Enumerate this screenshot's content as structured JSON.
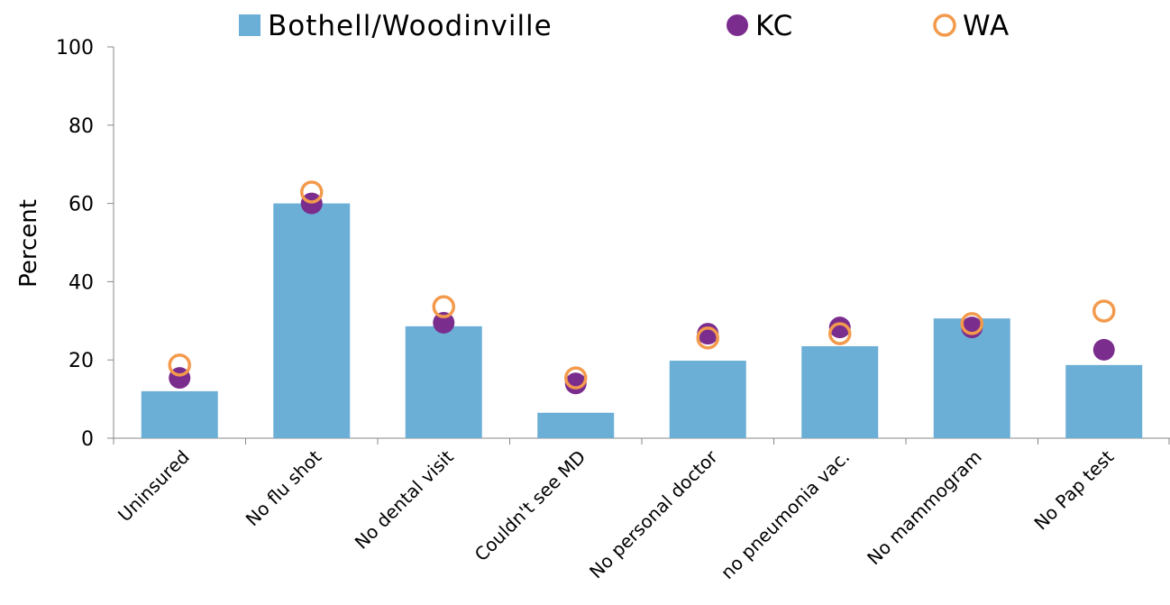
{
  "chart_data": {
    "type": "bar",
    "categories": [
      "Uninsured",
      "No flu shot",
      "No dental visit",
      "Couldn't see MD",
      "No personal doctor",
      "no pneumonia vac.",
      "No mammogram",
      "No Pap test"
    ],
    "series": [
      {
        "name": "Bothell/Woodinville",
        "color": "#6baed6",
        "style": "bar",
        "values": [
          12.0,
          60.0,
          28.6,
          6.5,
          19.8,
          23.5,
          30.6,
          18.7
        ]
      },
      {
        "name": "KC",
        "color": "#7b2d8e",
        "style": "filled-circle",
        "values": [
          15.4,
          60.0,
          29.5,
          14.0,
          26.7,
          28.3,
          28.3,
          22.6
        ]
      },
      {
        "name": "WA",
        "color": "#f39a4c",
        "style": "open-circle",
        "values": [
          18.7,
          62.9,
          33.6,
          15.4,
          25.6,
          26.7,
          29.3,
          32.5
        ]
      }
    ],
    "y_label": "Percent",
    "ylim": [
      0,
      100
    ],
    "yticks": [
      0,
      20,
      40,
      60,
      80,
      100
    ],
    "grid": false,
    "legend": "top"
  }
}
